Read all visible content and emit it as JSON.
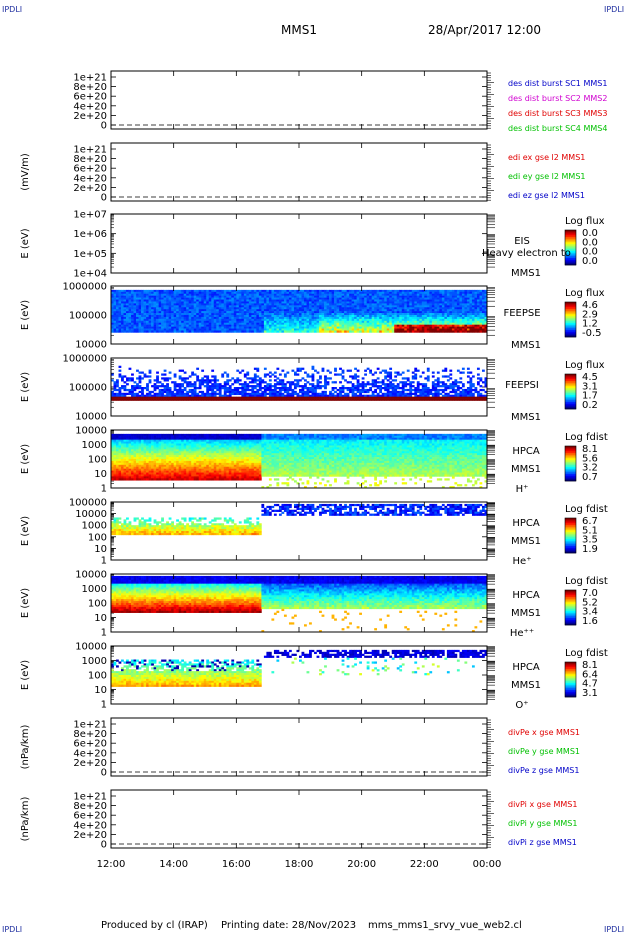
{
  "corners": {
    "tl": "IPDLI",
    "tr": "IPDLI",
    "bl": "IPDLI",
    "br": "IPDLI"
  },
  "header": {
    "title": "MMS1",
    "datetime": "28/Apr/2017 12:00"
  },
  "footer": {
    "producer": "Produced by cl (IRAP)",
    "printing": "Printing date: 28/Nov/2023",
    "script": "mms_mms1_srvy_vue_web2.cl"
  },
  "chart_data": {
    "type": "heatmap",
    "x_ticks": [
      "12:00",
      "14:00",
      "16:00",
      "18:00",
      "20:00",
      "22:00",
      "00:00"
    ],
    "panels": [
      {
        "kind": "line",
        "ylabel": "",
        "ticks": [
          "1e+21",
          "8e+20",
          "6e+20",
          "4e+20",
          "2e+20",
          "0"
        ],
        "legend": [
          {
            "text": "des dist burst SC1 MMS1",
            "color": "#0000c8"
          },
          {
            "text": "des dist burst SC2 MMS2",
            "color": "#d000d0"
          },
          {
            "text": "des dist burst SC3 MMS3",
            "color": "#e00000"
          },
          {
            "text": "des dist burst SC4 MMS4",
            "color": "#00c000"
          }
        ]
      },
      {
        "kind": "line",
        "ylabel": "(mV/m)",
        "ticks": [
          "1e+21",
          "8e+20",
          "6e+20",
          "4e+20",
          "2e+20",
          "0"
        ],
        "legend": [
          {
            "text": "edi ex gse l2 MMS1",
            "color": "#e00000"
          },
          {
            "text": "edi ey gse l2 MMS1",
            "color": "#00c000"
          },
          {
            "text": "edi ez gse l2 MMS1",
            "color": "#0000c8"
          }
        ]
      },
      {
        "kind": "spec",
        "ylabel": "E (eV)",
        "ticks": [
          "1e+07",
          "1e+06",
          "1e+05",
          "1e+04"
        ],
        "labels": [
          "EIS",
          "MMS1"
        ],
        "overlay": "Heavy electron to",
        "cbtitle": "Log flux",
        "cb": [
          "0.0",
          "0.0",
          "0.0",
          "0.0"
        ],
        "profile": "empty"
      },
      {
        "kind": "spec",
        "ylabel": "E (eV)",
        "ticks": [
          "1000000",
          "100000",
          "10000"
        ],
        "labels": [
          "FEEPSE",
          "MMS1"
        ],
        "cbtitle": "Log flux",
        "cb": [
          "4.6",
          "2.9",
          "1.2",
          "-0.5"
        ],
        "profile": "feepse"
      },
      {
        "kind": "spec",
        "ylabel": "E (eV)",
        "ticks": [
          "1000000",
          "100000",
          "10000"
        ],
        "labels": [
          "FEEPSI",
          "MMS1"
        ],
        "cbtitle": "Log flux",
        "cb": [
          "4.5",
          "3.1",
          "1.7",
          "0.2"
        ],
        "profile": "feepsi"
      },
      {
        "kind": "spec",
        "ylabel": "E (eV)",
        "ticks": [
          "10000",
          "1000",
          "100",
          "10",
          "1"
        ],
        "labels": [
          "HPCA",
          "MMS1",
          "H⁺"
        ],
        "cbtitle": "Log fdist",
        "cb": [
          "8.1",
          "5.6",
          "3.2",
          "0.7"
        ],
        "profile": "hplus"
      },
      {
        "kind": "spec",
        "ylabel": "E (eV)",
        "ticks": [
          "100000",
          "10000",
          "1000",
          "100",
          "10",
          "1"
        ],
        "labels": [
          "HPCA",
          "MMS1",
          "He⁺"
        ],
        "cbtitle": "Log fdist",
        "cb": [
          "6.7",
          "5.1",
          "3.5",
          "1.9"
        ],
        "profile": "heplus"
      },
      {
        "kind": "spec",
        "ylabel": "E (eV)",
        "ticks": [
          "10000",
          "1000",
          "100",
          "10",
          "1"
        ],
        "labels": [
          "HPCA",
          "MMS1",
          "He⁺⁺"
        ],
        "cbtitle": "Log fdist",
        "cb": [
          "7.0",
          "5.2",
          "3.4",
          "1.6"
        ],
        "profile": "heplusplus"
      },
      {
        "kind": "spec",
        "ylabel": "E (eV)",
        "ticks": [
          "10000",
          "1000",
          "100",
          "10",
          "1"
        ],
        "labels": [
          "HPCA",
          "MMS1",
          "O⁺"
        ],
        "cbtitle": "Log fdist",
        "cb": [
          "8.1",
          "6.4",
          "4.7",
          "3.1"
        ],
        "profile": "oplus"
      },
      {
        "kind": "line",
        "ylabel": "(nPa/km)",
        "ticks": [
          "1e+21",
          "8e+20",
          "6e+20",
          "4e+20",
          "2e+20",
          "0"
        ],
        "legend": [
          {
            "text": "divPe x gse MMS1",
            "color": "#e00000"
          },
          {
            "text": "divPe y gse MMS1",
            "color": "#00c000"
          },
          {
            "text": "divPe z gse MMS1",
            "color": "#0000c8"
          }
        ]
      },
      {
        "kind": "line",
        "ylabel": "(nPa/km)",
        "ticks": [
          "1e+21",
          "8e+20",
          "6e+20",
          "4e+20",
          "2e+20",
          "0"
        ],
        "legend": [
          {
            "text": "divPi x gse MMS1",
            "color": "#e00000"
          },
          {
            "text": "divPi y gse MMS1",
            "color": "#00c000"
          },
          {
            "text": "divPi z gse MMS1",
            "color": "#0000c8"
          }
        ]
      }
    ]
  }
}
